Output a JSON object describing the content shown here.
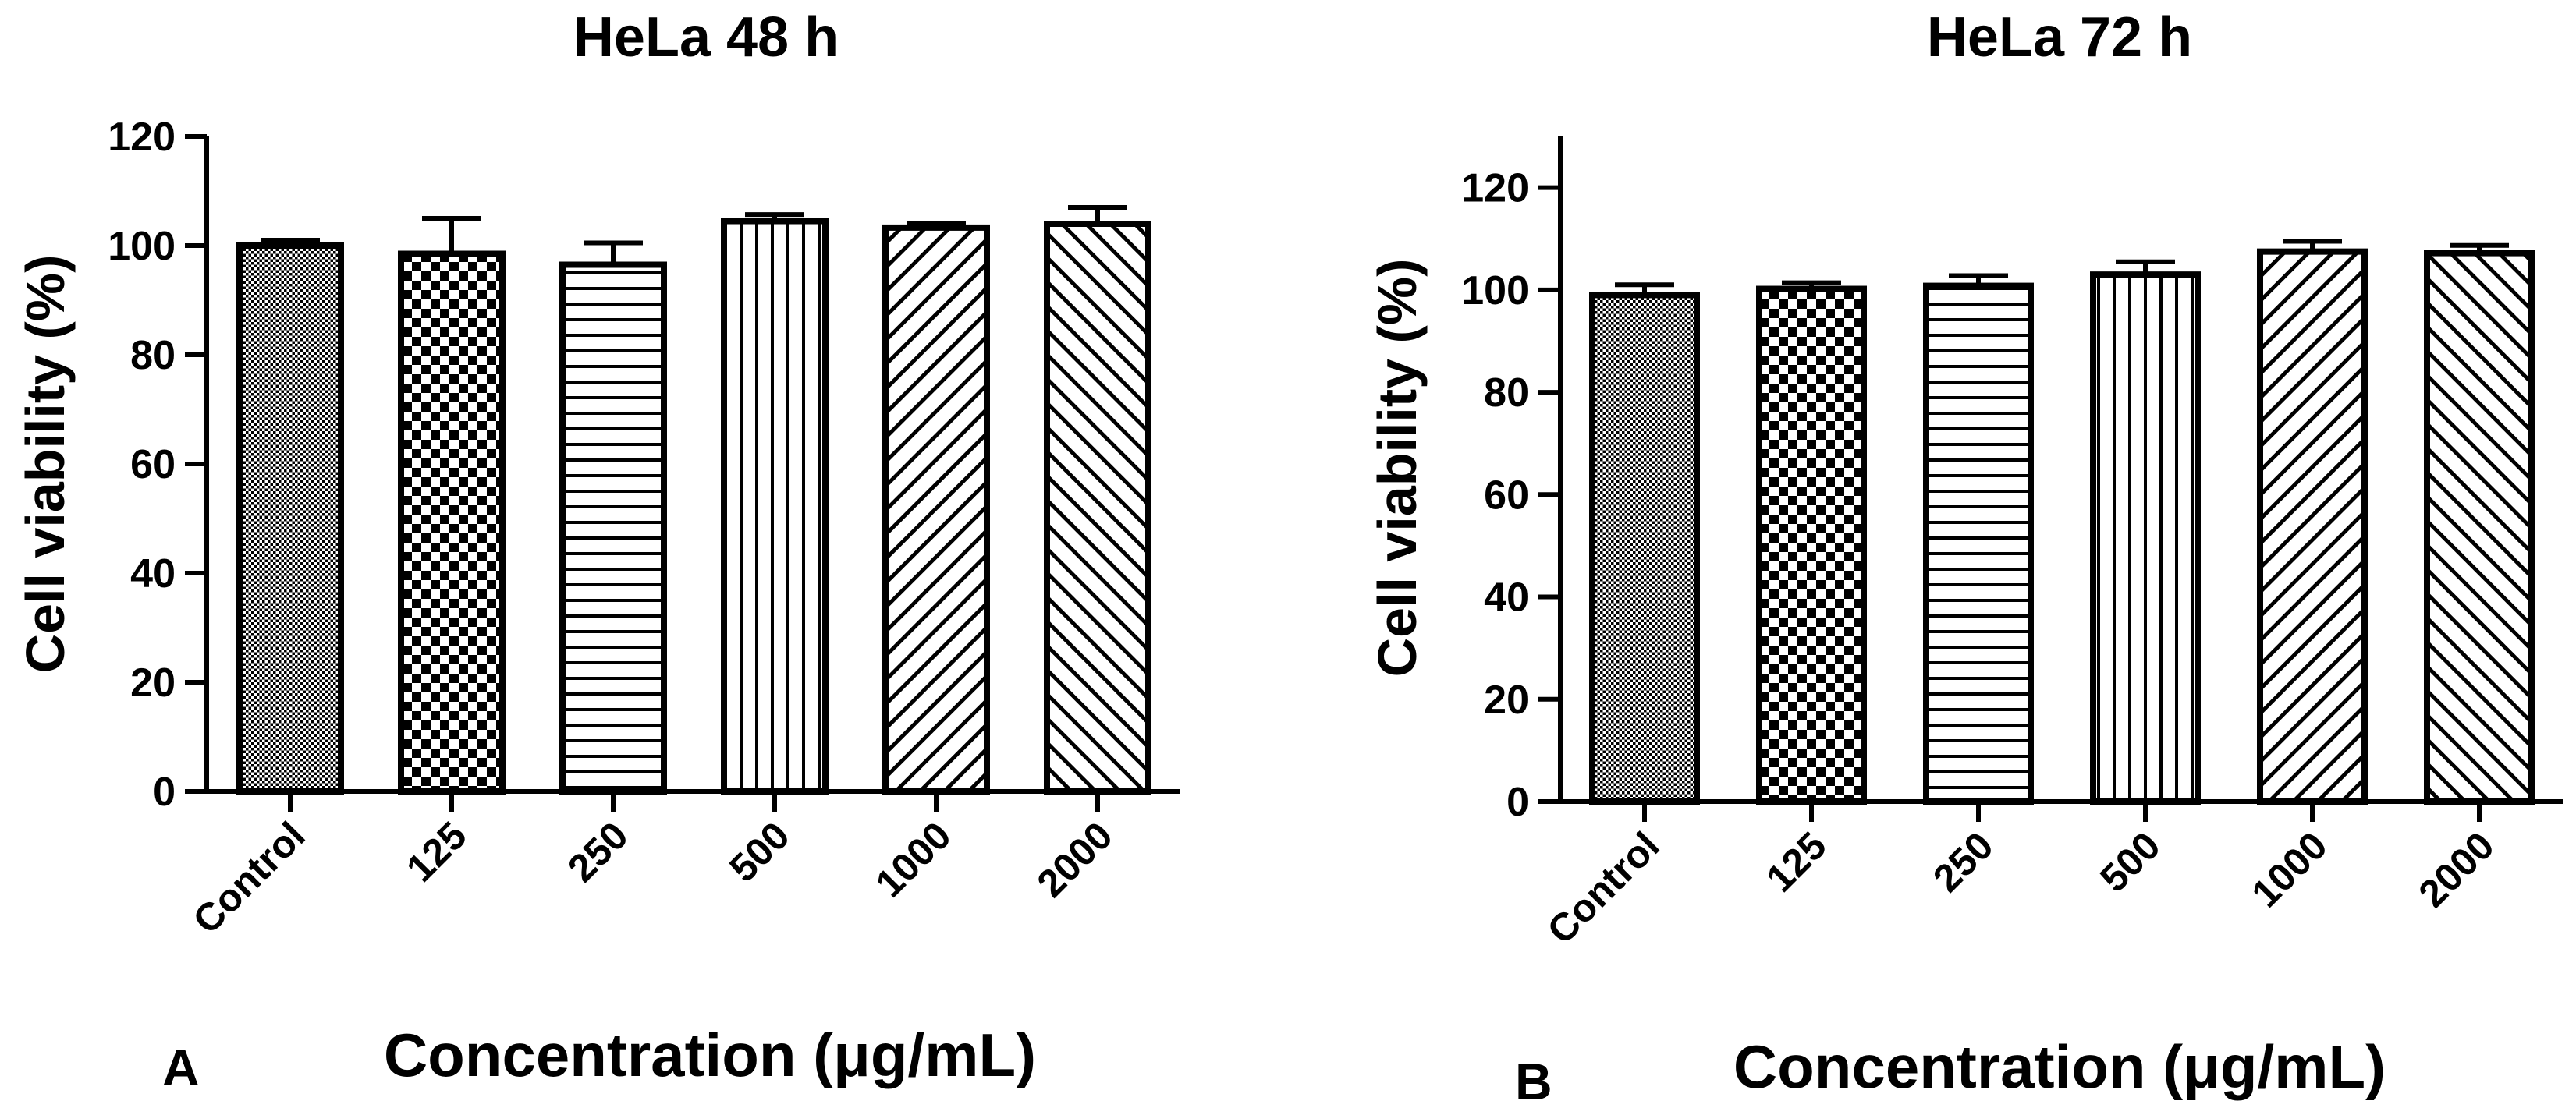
{
  "chart_data": [
    {
      "type": "bar",
      "panel_label": "A",
      "title": "HeLa 48 h",
      "xlabel": "Concentration (μg/mL)",
      "ylabel": "Cell viability (%)",
      "ylim": [
        0,
        120
      ],
      "yticks": [
        0,
        20,
        40,
        60,
        80,
        100,
        120
      ],
      "grid": false,
      "categories": [
        "Control",
        "125",
        "250",
        "500",
        "1000",
        "2000"
      ],
      "values": [
        100,
        98.5,
        96.5,
        104.5,
        103.3,
        104
      ],
      "errors": [
        1.0,
        6.5,
        4.0,
        1.2,
        0.8,
        3.0
      ],
      "patterns": [
        "dots",
        "checker",
        "hlines",
        "vlines",
        "diag-up",
        "diag-down"
      ]
    },
    {
      "type": "bar",
      "panel_label": "B",
      "title": "HeLa 72 h",
      "xlabel": "Concentration (μg/mL)",
      "ylabel": "Cell viability (%)",
      "ylim": [
        0,
        130
      ],
      "yticks": [
        0,
        20,
        40,
        60,
        80,
        100,
        120
      ],
      "grid": false,
      "categories": [
        "Control",
        "125",
        "250",
        "500",
        "1000",
        "2000"
      ],
      "values": [
        99,
        100.2,
        100.8,
        103,
        107.5,
        107.2
      ],
      "errors": [
        2.0,
        1.2,
        2.0,
        2.5,
        2.0,
        1.5
      ],
      "patterns": [
        "dots",
        "checker",
        "hlines",
        "vlines",
        "diag-up",
        "diag-down"
      ]
    }
  ]
}
